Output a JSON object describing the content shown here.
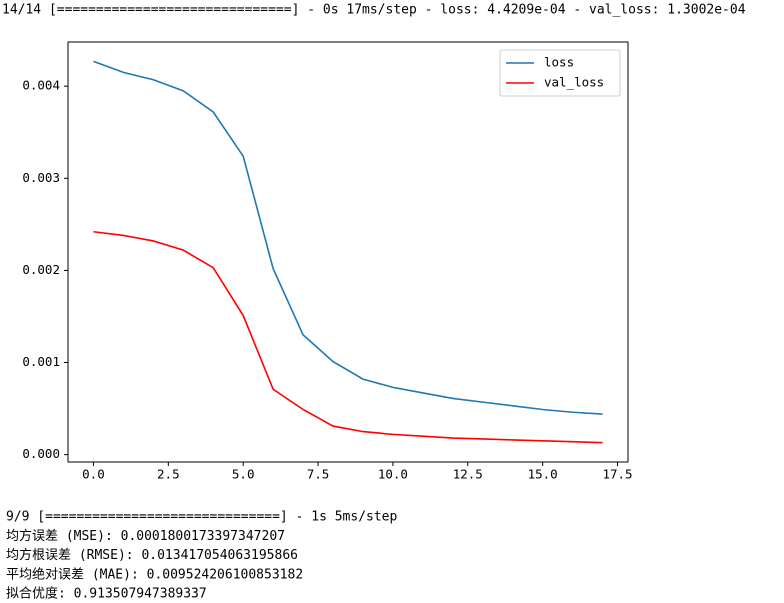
{
  "output_top": "14/14 [==============================] - 0s 17ms/step - loss: 4.4209e-04 - val_loss: 1.3002e-04",
  "chart_data": {
    "type": "line",
    "x": [
      0,
      1,
      2,
      3,
      4,
      5,
      6,
      7,
      8,
      9,
      10,
      11,
      12,
      13,
      14,
      15,
      16,
      17
    ],
    "series": [
      {
        "name": "loss",
        "color": "#1f77b4",
        "values": [
          0.00427,
          0.00415,
          0.00407,
          0.00395,
          0.00372,
          0.00324,
          0.00202,
          0.0013,
          0.00101,
          0.00082,
          0.00073,
          0.00067,
          0.00061,
          0.00057,
          0.00053,
          0.00049,
          0.00046,
          0.00044
        ]
      },
      {
        "name": "val_loss",
        "color": "#ff0000",
        "values": [
          0.00242,
          0.00238,
          0.00232,
          0.00222,
          0.00203,
          0.00151,
          0.00071,
          0.00049,
          0.00031,
          0.00025,
          0.00022,
          0.0002,
          0.00018,
          0.00017,
          0.00016,
          0.00015,
          0.00014,
          0.00013
        ]
      }
    ],
    "xlim": [
      -0.85,
      17.85
    ],
    "ylim": [
      -8e-05,
      0.00448
    ],
    "xticks": [
      {
        "value": 0,
        "label": "0.0"
      },
      {
        "value": 2.5,
        "label": "2.5"
      },
      {
        "value": 5,
        "label": "5.0"
      },
      {
        "value": 7.5,
        "label": "7.5"
      },
      {
        "value": 10,
        "label": "10.0"
      },
      {
        "value": 12.5,
        "label": "12.5"
      },
      {
        "value": 15,
        "label": "15.0"
      },
      {
        "value": 17.5,
        "label": "17.5"
      }
    ],
    "yticks": [
      {
        "value": 0,
        "label": "0.000"
      },
      {
        "value": 0.001,
        "label": "0.001"
      },
      {
        "value": 0.002,
        "label": "0.002"
      },
      {
        "value": 0.003,
        "label": "0.003"
      },
      {
        "value": 0.004,
        "label": "0.004"
      }
    ],
    "legend": "upper right"
  },
  "output_bottom": [
    "9/9 [==============================] - 1s 5ms/step",
    "均方误差 (MSE): 0.0001800173397347207",
    "均方根误差 (RMSE): 0.013417054063195866",
    "平均绝对误差 (MAE): 0.009524206100853182",
    "拟合优度: 0.913507947389337"
  ]
}
